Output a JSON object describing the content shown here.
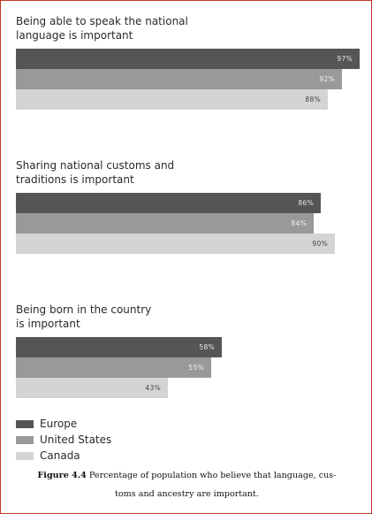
{
  "chart_data": {
    "type": "bar",
    "orientation": "horizontal",
    "xlim": [
      0,
      100
    ],
    "grid": false,
    "legend_position": "bottom-left",
    "series": [
      {
        "name": "Europe",
        "color": "#555555",
        "label_color": "#e6e6e6"
      },
      {
        "name": "United States",
        "color": "#999999",
        "label_color": "#f2f2f2"
      },
      {
        "name": "Canada",
        "color": "#d4d4d4",
        "label_color": "#444444"
      }
    ],
    "groups": [
      {
        "title_lines": [
          "Being able to speak the national",
          "language is important"
        ],
        "values": [
          97,
          92,
          88
        ],
        "labels": [
          "97%",
          "92%",
          "88%"
        ]
      },
      {
        "title_lines": [
          "Sharing national customs and",
          "traditions is important"
        ],
        "values": [
          86,
          84,
          90
        ],
        "labels": [
          "86%",
          "84%",
          "90%"
        ]
      },
      {
        "title_lines": [
          "Being born in the country",
          "is important"
        ],
        "values": [
          58,
          55,
          43
        ],
        "labels": [
          "58%",
          "55%",
          "43%"
        ]
      }
    ]
  },
  "caption": {
    "figure_label": "Figure 4.4",
    "text": "Percentage of population who believe that language, cus-",
    "text_line2": "toms and ancestry are important."
  }
}
